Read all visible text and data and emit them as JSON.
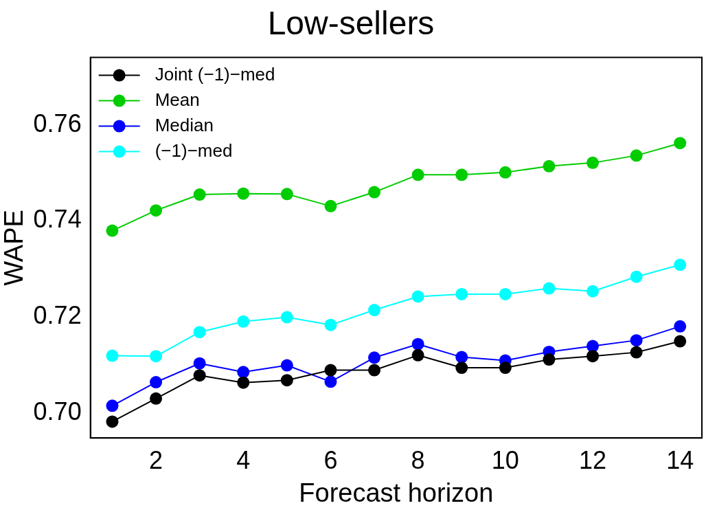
{
  "chart_data": {
    "type": "line",
    "title": "Low-sellers",
    "xlabel": "Forecast horizon",
    "ylabel": "WAPE",
    "x": [
      1,
      2,
      3,
      4,
      5,
      6,
      7,
      8,
      9,
      10,
      11,
      12,
      13,
      14
    ],
    "series": [
      {
        "name": "Joint (−1)−med",
        "color": "#000000",
        "values": [
          0.6983,
          0.7031,
          0.7079,
          0.7064,
          0.7069,
          0.709,
          0.709,
          0.7121,
          0.7095,
          0.7095,
          0.7112,
          0.7119,
          0.7127,
          0.715
        ]
      },
      {
        "name": "Mean",
        "color": "#00cd00",
        "values": [
          0.738,
          0.7422,
          0.7455,
          0.7457,
          0.7456,
          0.7431,
          0.746,
          0.7496,
          0.7496,
          0.7501,
          0.7514,
          0.7521,
          0.7536,
          0.7562
        ]
      },
      {
        "name": "Median",
        "color": "#0000ff",
        "values": [
          0.7016,
          0.7065,
          0.7104,
          0.7086,
          0.71,
          0.7066,
          0.7116,
          0.7144,
          0.7117,
          0.711,
          0.7128,
          0.714,
          0.7152,
          0.7181
        ]
      },
      {
        "name": "(−1)−med",
        "color": "#00ffff",
        "values": [
          0.712,
          0.7119,
          0.7169,
          0.7191,
          0.72,
          0.7184,
          0.7215,
          0.7243,
          0.7248,
          0.7248,
          0.726,
          0.7254,
          0.7284,
          0.7309
        ]
      }
    ],
    "xlim": [
      0.5,
      14.5
    ],
    "xticks": [
      2,
      4,
      6,
      8,
      10,
      12,
      14
    ],
    "ylim": [
      0.6949,
      0.774
    ],
    "yticks": [
      {
        "value": 0.7,
        "label": "0.70"
      },
      {
        "value": 0.72,
        "label": "0.72"
      },
      {
        "value": 0.74,
        "label": "0.74"
      },
      {
        "value": 0.76,
        "label": "0.76"
      }
    ],
    "grid": false,
    "legend": "top left",
    "marker": "circle",
    "line_style": "solid"
  }
}
